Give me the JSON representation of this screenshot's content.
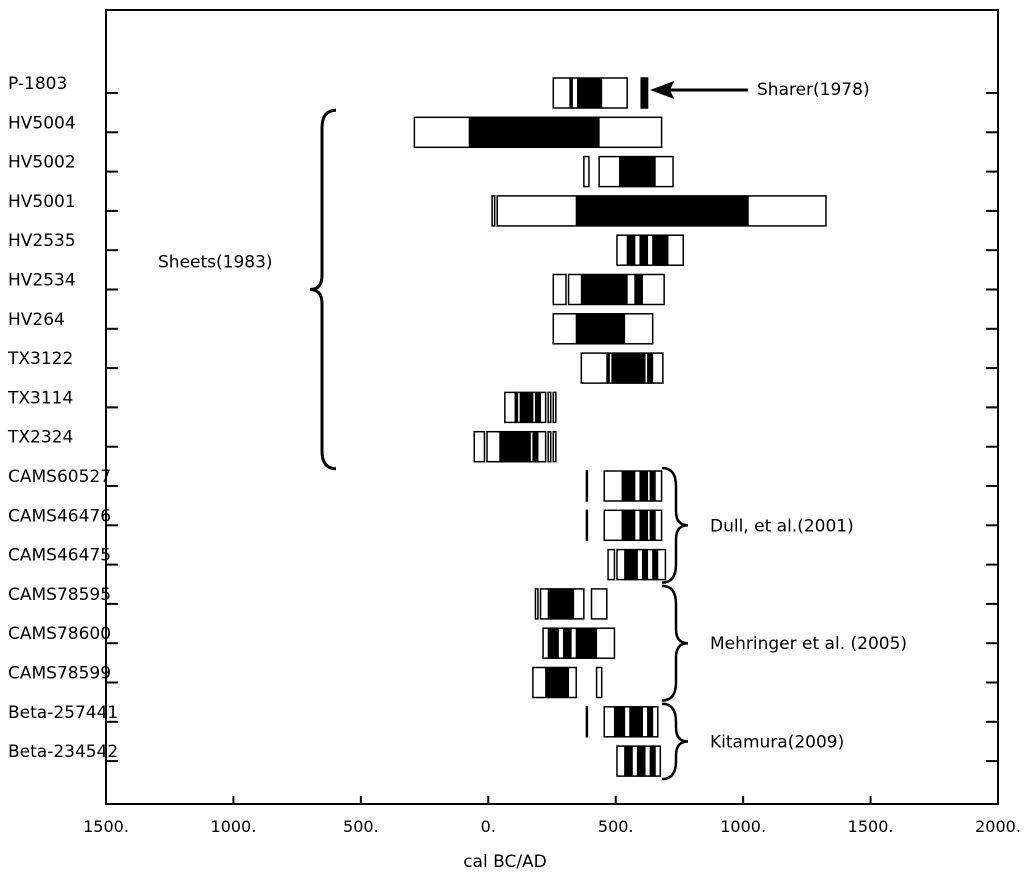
{
  "chart_data": {
    "type": "range",
    "xlabel": "cal  BC/AD",
    "xlim": [
      -1500,
      2000
    ],
    "x_ticks": [
      {
        "value": -1500,
        "label": "1500."
      },
      {
        "value": -1000,
        "label": "1000."
      },
      {
        "value": -500,
        "label": "500."
      },
      {
        "value": 0,
        "label": "0."
      },
      {
        "value": 500,
        "label": "500."
      },
      {
        "value": 1000,
        "label": "1000."
      },
      {
        "value": 1500,
        "label": "1500."
      },
      {
        "value": 2000,
        "label": "2000."
      }
    ],
    "grid": false,
    "samples": [
      {
        "label": "P-1803",
        "outer": [
          [
            255,
            545
          ],
          [
            600,
            605
          ],
          [
            610,
            615
          ],
          [
            620,
            625
          ]
        ],
        "inner": [
          [
            320,
            330
          ],
          [
            350,
            445
          ]
        ]
      },
      {
        "label": "HV5004",
        "outer": [
          [
            -290,
            680
          ]
        ],
        "inner": [
          [
            -75,
            435
          ]
        ]
      },
      {
        "label": "HV5002",
        "outer": [
          [
            375,
            395
          ],
          [
            435,
            725
          ]
        ],
        "inner": [
          [
            515,
            655
          ]
        ]
      },
      {
        "label": "HV5001",
        "outer": [
          [
            15,
            25
          ],
          [
            35,
            1325
          ]
        ],
        "inner": [
          [
            345,
            980
          ],
          [
            980,
            1020
          ]
        ]
      },
      {
        "label": "HV2535",
        "outer": [
          [
            505,
            765
          ]
        ],
        "inner": [
          [
            545,
            575
          ],
          [
            595,
            625
          ],
          [
            645,
            705
          ]
        ]
      },
      {
        "label": "HV2534",
        "outer": [
          [
            255,
            305
          ],
          [
            315,
            690
          ]
        ],
        "inner": [
          [
            365,
            545
          ],
          [
            575,
            605
          ]
        ]
      },
      {
        "label": "HV264",
        "outer": [
          [
            255,
            645
          ]
        ],
        "inner": [
          [
            345,
            535
          ]
        ]
      },
      {
        "label": "TX3122",
        "outer": [
          [
            365,
            685
          ]
        ],
        "inner": [
          [
            465,
            475
          ],
          [
            485,
            615
          ],
          [
            625,
            645
          ]
        ]
      },
      {
        "label": "TX3114",
        "outer": [
          [
            65,
            225
          ],
          [
            235,
            245
          ],
          [
            255,
            265
          ]
        ],
        "inner": [
          [
            105,
            115
          ],
          [
            125,
            175
          ],
          [
            185,
            205
          ]
        ]
      },
      {
        "label": "TX2324",
        "outer": [
          [
            -55,
            -15
          ],
          [
            -5,
            225
          ],
          [
            235,
            245
          ],
          [
            255,
            265
          ]
        ],
        "inner": [
          [
            45,
            165
          ],
          [
            175,
            195
          ]
        ]
      },
      {
        "label": "CAMS60527",
        "outer": [
          [
            385,
            388
          ],
          [
            455,
            680
          ]
        ],
        "inner": [
          [
            525,
            575
          ],
          [
            595,
            625
          ],
          [
            635,
            655
          ]
        ]
      },
      {
        "label": "CAMS46476",
        "outer": [
          [
            385,
            388
          ],
          [
            455,
            680
          ]
        ],
        "inner": [
          [
            525,
            575
          ],
          [
            595,
            625
          ],
          [
            635,
            655
          ]
        ]
      },
      {
        "label": "CAMS46475",
        "outer": [
          [
            470,
            495
          ],
          [
            505,
            695
          ]
        ],
        "inner": [
          [
            535,
            585
          ],
          [
            605,
            625
          ],
          [
            645,
            665
          ]
        ]
      },
      {
        "label": "CAMS78595",
        "outer": [
          [
            185,
            195
          ],
          [
            205,
            375
          ],
          [
            405,
            465
          ]
        ],
        "inner": [
          [
            235,
            335
          ]
        ]
      },
      {
        "label": "CAMS78600",
        "outer": [
          [
            215,
            495
          ]
        ],
        "inner": [
          [
            235,
            275
          ],
          [
            295,
            325
          ],
          [
            345,
            425
          ]
        ]
      },
      {
        "label": "CAMS78599",
        "outer": [
          [
            175,
            345
          ],
          [
            425,
            445
          ]
        ],
        "inner": [
          [
            225,
            315
          ]
        ]
      },
      {
        "label": "Beta-257441",
        "outer": [
          [
            385,
            388
          ],
          [
            455,
            665
          ]
        ],
        "inner": [
          [
            495,
            535
          ],
          [
            555,
            605
          ],
          [
            625,
            645
          ]
        ]
      },
      {
        "label": "Beta-234542",
        "outer": [
          [
            505,
            675
          ]
        ],
        "inner": [
          [
            535,
            565
          ],
          [
            585,
            615
          ],
          [
            635,
            655
          ]
        ]
      }
    ],
    "annotations": [
      {
        "text": "Sharer(1978)",
        "rows": [
          0,
          0
        ],
        "marker": "arrow",
        "arrow_to": 635
      },
      {
        "text": "Sheets(1983)",
        "rows": [
          1,
          9
        ],
        "marker": "brace-left"
      },
      {
        "text": "Dull, et al.(2001)",
        "rows": [
          10,
          12
        ],
        "marker": "brace-right"
      },
      {
        "text": "Mehringer et al. (2005)",
        "rows": [
          13,
          15
        ],
        "marker": "brace-right"
      },
      {
        "text": "Kitamura(2009)",
        "rows": [
          16,
          17
        ],
        "marker": "brace-right"
      }
    ]
  }
}
